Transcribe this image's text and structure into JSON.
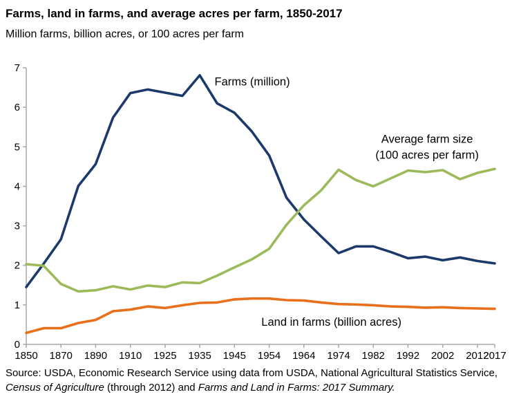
{
  "title": "Farms, land in farms, and average acres per farm, 1850-2017",
  "subtitle": "Million farms, billion acres, or 100 acres per farm",
  "source": {
    "segments": {
      "s0": "Source: USDA, Economic Research Service using data from USDA, National Agricultural Statistics Service, ",
      "s1": "Census of Agriculture",
      "s2": " (through 2012) and ",
      "s3": "Farms and Land in Farms: 2017 Summary."
    }
  },
  "chart_data": {
    "type": "line",
    "x": [
      1850,
      1860,
      1870,
      1880,
      1890,
      1900,
      1910,
      1920,
      1925,
      1930,
      1935,
      1940,
      1945,
      1950,
      1954,
      1959,
      1964,
      1969,
      1974,
      1978,
      1982,
      1987,
      1992,
      1997,
      2002,
      2007,
      2012,
      2017
    ],
    "ylim": [
      0,
      7
    ],
    "yticks": [
      0,
      1,
      2,
      3,
      4,
      5,
      6,
      7
    ],
    "xticks": [
      {
        "i": 0,
        "label": "1850"
      },
      {
        "i": 2,
        "label": "1870"
      },
      {
        "i": 4,
        "label": "1890"
      },
      {
        "i": 6,
        "label": "1910"
      },
      {
        "i": 8,
        "label": "1925"
      },
      {
        "i": 10,
        "label": "1935"
      },
      {
        "i": 12,
        "label": "1945"
      },
      {
        "i": 14,
        "label": "1954"
      },
      {
        "i": 16,
        "label": "1964"
      },
      {
        "i": 18,
        "label": "1974"
      },
      {
        "i": 20,
        "label": "1982"
      },
      {
        "i": 22,
        "label": "1992"
      },
      {
        "i": 24,
        "label": "2002"
      },
      {
        "i": 26,
        "label": "2012"
      },
      {
        "i": 27,
        "label": "2017"
      }
    ],
    "axis_color": "#a8a8a8",
    "series": [
      {
        "key": "farms",
        "name": "Farms (million)",
        "color": "#1b3a6b",
        "values": [
          1.45,
          2.04,
          2.66,
          4.01,
          4.56,
          5.74,
          6.36,
          6.45,
          6.37,
          6.29,
          6.81,
          6.1,
          5.86,
          5.39,
          4.78,
          3.71,
          3.16,
          2.73,
          2.31,
          2.48,
          2.48,
          2.34,
          2.18,
          2.22,
          2.13,
          2.2,
          2.11,
          2.05
        ]
      },
      {
        "key": "avg-farm-size",
        "name": "Average farm size (100 acres per farm)",
        "color": "#9cba5a",
        "values": [
          2.03,
          1.99,
          1.53,
          1.34,
          1.37,
          1.47,
          1.39,
          1.49,
          1.45,
          1.57,
          1.55,
          1.74,
          1.95,
          2.15,
          2.42,
          3.03,
          3.52,
          3.9,
          4.42,
          4.16,
          4.0,
          4.2,
          4.4,
          4.36,
          4.41,
          4.18,
          4.34,
          4.44
        ]
      },
      {
        "key": "land-in-farms",
        "name": "Land in farms (billion acres)",
        "color": "#e8701a",
        "values": [
          0.29,
          0.41,
          0.41,
          0.54,
          0.62,
          0.84,
          0.88,
          0.96,
          0.92,
          0.99,
          1.05,
          1.06,
          1.14,
          1.16,
          1.16,
          1.12,
          1.11,
          1.06,
          1.02,
          1.01,
          0.99,
          0.96,
          0.95,
          0.93,
          0.94,
          0.92,
          0.91,
          0.9
        ]
      }
    ],
    "annotations": [
      {
        "lines": [
          "Farms (million)"
        ],
        "xi": 10.85,
        "v": 6.55,
        "anchor": "start"
      },
      {
        "lines": [
          "Average farm size",
          "(100 acres per farm)"
        ],
        "xi": 23.1,
        "v": 5.1,
        "anchor": "middle"
      },
      {
        "lines": [
          "Land in farms (billion acres)"
        ],
        "xi": 13.55,
        "v": 0.47,
        "anchor": "start"
      }
    ]
  }
}
